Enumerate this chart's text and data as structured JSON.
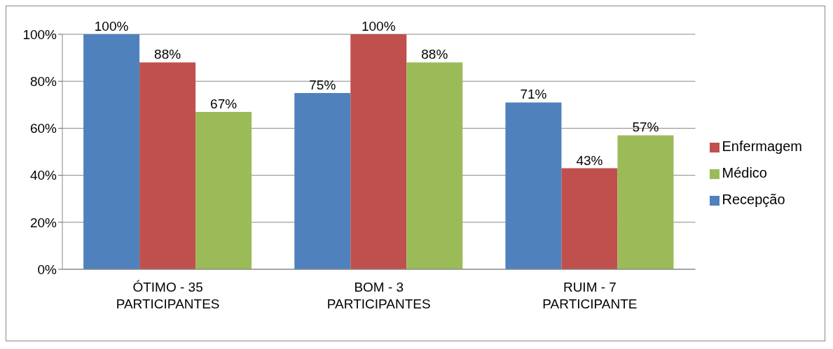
{
  "chart_data": {
    "type": "bar",
    "categories": [
      "ÓTIMO - 35 PARTICIPANTES",
      "BOM - 3 PARTICIPANTES",
      "RUIM - 7 PARTICIPANTE"
    ],
    "series": [
      {
        "name": "Recepção",
        "color": "#4f81bd",
        "values": [
          100,
          75,
          71
        ],
        "value_labels": [
          "100%",
          "75%",
          "71%"
        ]
      },
      {
        "name": "Enfermagem",
        "color": "#c0504d",
        "values": [
          88,
          100,
          43
        ],
        "value_labels": [
          "88%",
          "100%",
          "43%"
        ]
      },
      {
        "name": "Médico",
        "color": "#9bbb59",
        "values": [
          67,
          88,
          57
        ],
        "value_labels": [
          "67%",
          "88%",
          "57%"
        ]
      }
    ],
    "ylim": [
      0,
      100
    ],
    "yticks": [
      {
        "value": 0,
        "label": "0%"
      },
      {
        "value": 20,
        "label": "20%"
      },
      {
        "value": 40,
        "label": "40%"
      },
      {
        "value": 60,
        "label": "60%"
      },
      {
        "value": 80,
        "label": "80%"
      },
      {
        "value": 100,
        "label": "100%"
      }
    ],
    "grid": "y",
    "legend": "right"
  }
}
